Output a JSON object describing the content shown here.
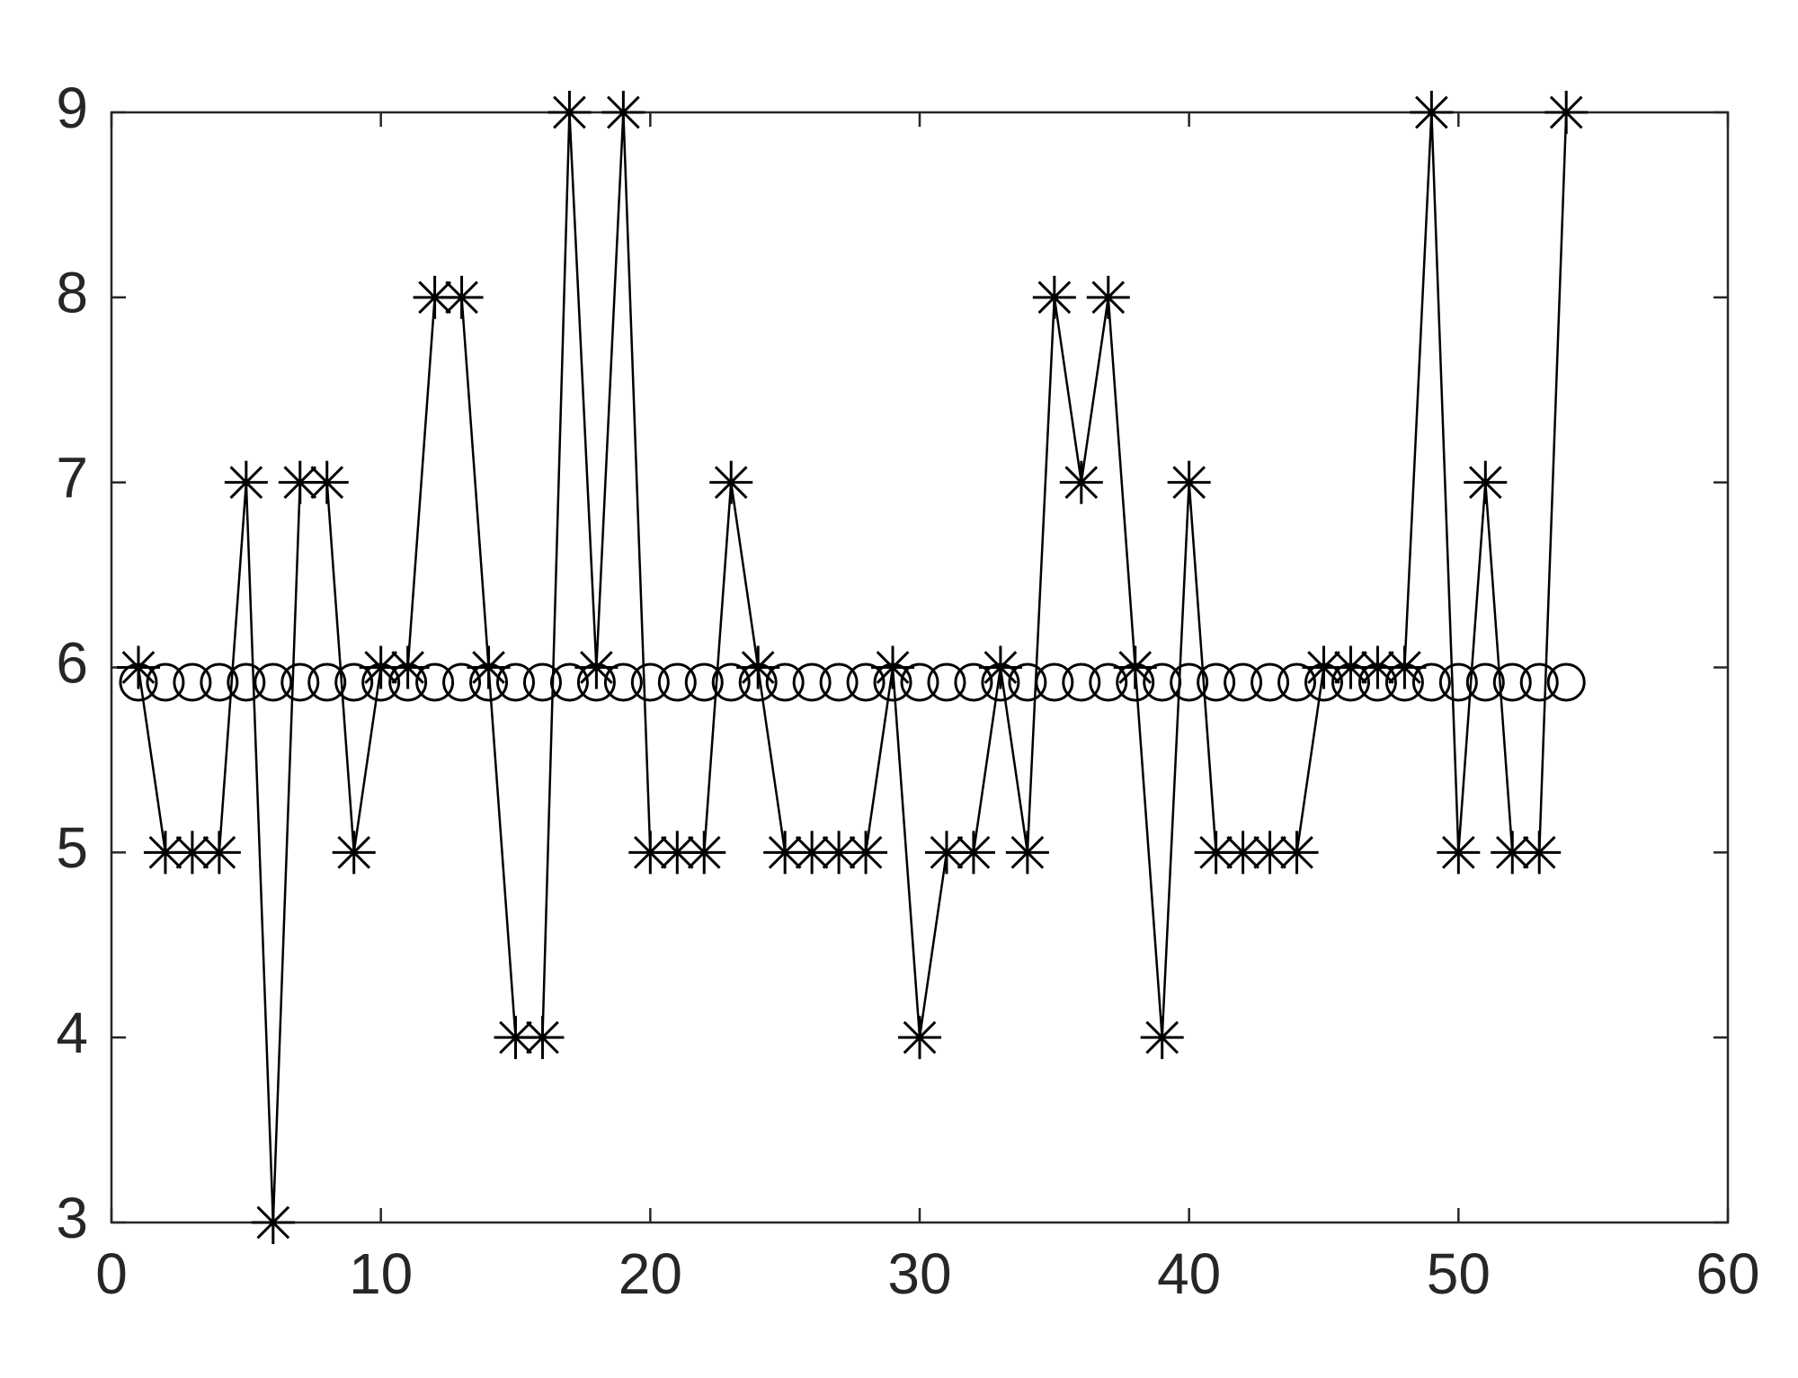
{
  "chart_data": {
    "type": "line",
    "x": [
      1,
      2,
      3,
      4,
      5,
      6,
      7,
      8,
      9,
      10,
      11,
      12,
      13,
      14,
      15,
      16,
      17,
      18,
      19,
      20,
      21,
      22,
      23,
      24,
      25,
      26,
      27,
      28,
      29,
      30,
      31,
      32,
      33,
      34,
      35,
      36,
      37,
      38,
      39,
      40,
      41,
      42,
      43,
      44,
      45,
      46,
      47,
      48,
      49,
      50,
      51,
      52,
      53,
      54
    ],
    "series": [
      {
        "color": "#000000",
        "marker": "asterisk",
        "line": true,
        "values": [
          6,
          5,
          5,
          5,
          7,
          3,
          7,
          7,
          5,
          6,
          6,
          8,
          8,
          6,
          4,
          4,
          9,
          6,
          9,
          5,
          5,
          5,
          7,
          6,
          5,
          5,
          5,
          5,
          6,
          4,
          5,
          5,
          6,
          5,
          8,
          7,
          8,
          6,
          4,
          7,
          5,
          5,
          5,
          5,
          6,
          6,
          6,
          6,
          9,
          5,
          7,
          5,
          5,
          9
        ]
      },
      {
        "color": "#000000",
        "marker": "circle",
        "line": false,
        "values": [
          5.92,
          5.92,
          5.92,
          5.92,
          5.92,
          5.92,
          5.92,
          5.92,
          5.92,
          5.92,
          5.92,
          5.92,
          5.92,
          5.92,
          5.92,
          5.92,
          5.92,
          5.92,
          5.92,
          5.92,
          5.92,
          5.92,
          5.92,
          5.92,
          5.92,
          5.92,
          5.92,
          5.92,
          5.92,
          5.92,
          5.92,
          5.92,
          5.92,
          5.92,
          5.92,
          5.92,
          5.92,
          5.92,
          5.92,
          5.92,
          5.92,
          5.92,
          5.92,
          5.92,
          5.92,
          5.92,
          5.92,
          5.92,
          5.92,
          5.92,
          5.92,
          5.92,
          5.92,
          5.92
        ]
      }
    ],
    "xlim": [
      0,
      60
    ],
    "xticks": [
      0,
      10,
      20,
      30,
      40,
      50,
      60
    ],
    "ylim": [
      3,
      9
    ],
    "yticks": [
      3,
      4,
      5,
      6,
      7,
      8,
      9
    ],
    "grid": false,
    "box": true
  }
}
